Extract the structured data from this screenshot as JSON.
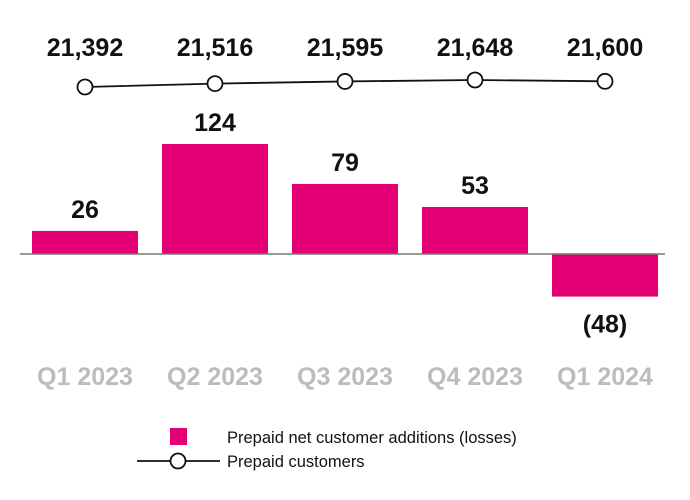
{
  "chart_data": {
    "type": "bar",
    "categories": [
      "Q1 2023",
      "Q2 2023",
      "Q3 2023",
      "Q4 2023",
      "Q1 2024"
    ],
    "series": [
      {
        "name": "Prepaid net customer additions (losses)",
        "type": "bar",
        "values": [
          26,
          124,
          79,
          53,
          -48
        ],
        "labels": [
          "26",
          "124",
          "79",
          "53",
          "(48)"
        ],
        "color": "#e20074"
      },
      {
        "name": "Prepaid customers",
        "type": "line",
        "values": [
          21392,
          21516,
          21595,
          21648,
          21600
        ],
        "labels": [
          "21,392",
          "21,516",
          "21,595",
          "21,648",
          "21,600"
        ],
        "color": "#111111"
      }
    ],
    "title": "",
    "xlabel": "",
    "ylabel": "",
    "grid": false,
    "legend_position": "bottom-center",
    "colors": {
      "bar": "#e20074",
      "line": "#111111",
      "marker_fill": "#ffffff",
      "axis": "#767676",
      "category_label": "#bcbcbc"
    }
  }
}
